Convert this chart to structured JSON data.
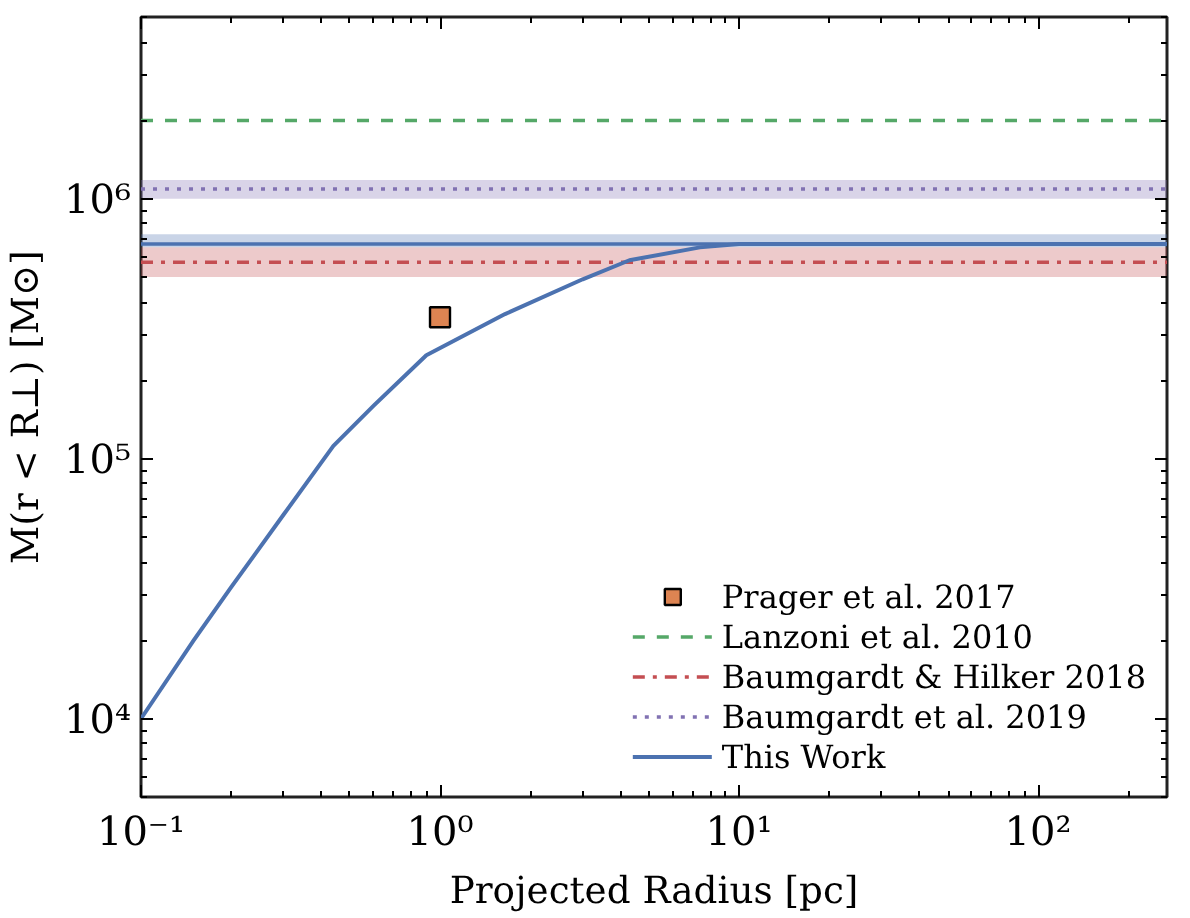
{
  "chart_data": {
    "type": "line",
    "xlabel": "Projected Radius [pc]",
    "ylabel": "M(r < R⊥) [M⊙]",
    "log": "xy",
    "grid": false,
    "legend": "bottom right",
    "xlim": [
      0.1,
      270
    ],
    "ylim": [
      5000,
      5000000
    ],
    "xticks": [
      {
        "value": 0.1,
        "label": "10⁻¹"
      },
      {
        "value": 1,
        "label": "10⁰"
      },
      {
        "value": 10,
        "label": "10¹"
      },
      {
        "value": 100,
        "label": "10²"
      }
    ],
    "yticks": [
      {
        "value": 10000,
        "label": "10⁴"
      },
      {
        "value": 100000,
        "label": "10⁵"
      },
      {
        "value": 1000000,
        "label": "10⁶"
      }
    ],
    "series": [
      {
        "name": "Prager et al. 2017",
        "type": "scatter",
        "marker": "square",
        "color": "#dd8452",
        "x": [
          1
        ],
        "values": [
          350000
        ]
      },
      {
        "name": "This Work",
        "line_style": "solid",
        "color": "#4c72b0",
        "x": [
          0.1,
          0.15,
          0.2,
          0.3,
          0.44,
          0.6,
          0.9,
          1.65,
          3,
          4.3,
          7.4,
          10,
          20,
          270
        ],
        "values": [
          10000,
          20000,
          32000,
          61000,
          112000,
          160000,
          250000,
          360000,
          490000,
          580000,
          650000,
          670000,
          670000,
          670000
        ]
      }
    ],
    "ref_lines": [
      {
        "axis": "y",
        "value": 2000000,
        "label": "Lanzoni et al. 2010",
        "color": "#55a868",
        "line_style": "dashed"
      },
      {
        "axis": "y",
        "value": 570000,
        "label": "Baumgardt & Hilker 2018",
        "color": "#c44e52",
        "line_style": "dashdot"
      },
      {
        "axis": "y",
        "value": 1090000,
        "label": "Baumgardt et al. 2019",
        "color": "#8172b2",
        "line_style": "dotted"
      },
      {
        "axis": "y",
        "value": 670000,
        "label": null,
        "color": "#4c72b0",
        "line_style": "solid"
      }
    ],
    "bands": [
      {
        "axis": "y",
        "from": 500000,
        "to": 650000,
        "label": null,
        "color": "#c44e52"
      },
      {
        "axis": "y",
        "from": 1000000,
        "to": 1180000,
        "label": null,
        "color": "#8172b2"
      },
      {
        "axis": "y",
        "from": 650000,
        "to": 730000,
        "label": null,
        "color": "#4c72b0"
      }
    ]
  }
}
